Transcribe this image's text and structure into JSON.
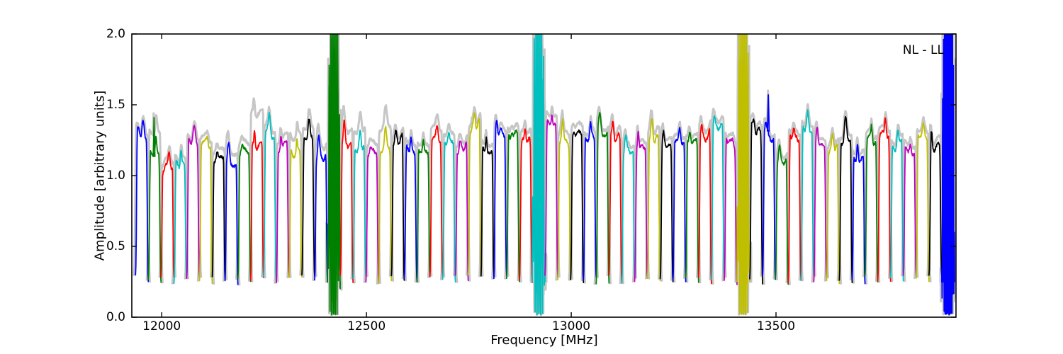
{
  "chart_data": {
    "type": "line",
    "title": "",
    "xlabel": "Frequency [MHz]",
    "ylabel": "Amplitude [arbitrary units]",
    "annotation": "NL - LL",
    "xlim": [
      11927,
      13939.5
    ],
    "ylim": [
      0.0,
      2.0
    ],
    "xticks": [
      12000,
      12500,
      13000,
      13500
    ],
    "xtick_labels": [
      "12000",
      "12500",
      "13000",
      "13500"
    ],
    "yticks": [
      0.0,
      0.5,
      1.0,
      1.5,
      2.0
    ],
    "ytick_labels": [
      "0.0",
      "0.5",
      "1.0",
      "1.5",
      "2.0"
    ],
    "grid": false,
    "legend": "none",
    "band_start_mhz": 11936,
    "band_width_mhz": 31.25,
    "n_bands": 64,
    "baseline_dip_amplitude": 0.26,
    "color_cycle": [
      "#0000ff",
      "#008000",
      "#ff0000",
      "#00bfbf",
      "#bf00bf",
      "#bfbf00",
      "#000000"
    ],
    "envelope_color": "#c6c6c6",
    "interference_band_centers_mhz": [
      12420,
      12920,
      13420,
      13920
    ],
    "bands": [
      {
        "p": 1.38,
        "g": 1.41
      },
      {
        "p": 1.27,
        "g": 1.42,
        "s": 1.41
      },
      {
        "p": 1.18,
        "g": 1.22
      },
      {
        "p": 1.2,
        "g": 1.24
      },
      {
        "p": 1.32,
        "g": 1.35
      },
      {
        "p": 1.28,
        "g": 1.32
      },
      {
        "p": 1.18,
        "g": 1.24
      },
      {
        "p": 1.22,
        "g": 1.3
      },
      {
        "p": 1.22,
        "g": 1.28
      },
      {
        "p": 1.32,
        "g": 1.55
      },
      {
        "p": 1.43,
        "g": 1.47
      },
      {
        "p": 1.3,
        "g": 1.36
      },
      {
        "p": 1.26,
        "g": 1.38
      },
      {
        "p": 1.4,
        "g": 1.47
      },
      {
        "p": 1.26,
        "g": 1.34
      },
      {
        "wild": true,
        "g": 1.5,
        "amp": 1.2,
        "freq": 7.5
      },
      {
        "p": 1.36,
        "g": 1.46
      },
      {
        "p": 1.3,
        "g": 1.43
      },
      {
        "p": 1.22,
        "g": 1.28
      },
      {
        "p": 1.32,
        "g": 1.47
      },
      {
        "p": 1.3,
        "g": 1.34
      },
      {
        "p": 1.27,
        "g": 1.32
      },
      {
        "p": 1.25,
        "g": 1.3
      },
      {
        "p": 1.35,
        "g": 1.43
      },
      {
        "p": 1.3,
        "g": 1.36
      },
      {
        "p": 1.25,
        "g": 1.3
      },
      {
        "p": 1.44,
        "g": 1.48
      },
      {
        "p": 1.28,
        "g": 1.33
      },
      {
        "p": 1.39,
        "g": 1.43
      },
      {
        "p": 1.33,
        "g": 1.38
      },
      {
        "p": 1.34,
        "g": 1.4
      },
      {
        "wild": true,
        "g": 1.5,
        "amp": 1.25,
        "freq": 7.0
      },
      {
        "p": 1.44,
        "g": 1.5
      },
      {
        "p": 1.38,
        "g": 1.44
      },
      {
        "p": 1.34,
        "g": 1.4
      },
      {
        "p": 1.36,
        "g": 1.4
      },
      {
        "p": 1.42,
        "g": 1.46
      },
      {
        "p": 1.37,
        "g": 1.42
      },
      {
        "p": 1.3,
        "g": 1.34
      },
      {
        "p": 1.33,
        "g": 1.37
      },
      {
        "p": 1.4,
        "g": 1.46
      },
      {
        "p": 1.3,
        "g": 1.35
      },
      {
        "p": 1.34,
        "g": 1.38
      },
      {
        "p": 1.32,
        "g": 1.36
      },
      {
        "p": 1.34,
        "g": 1.4
      },
      {
        "p": 1.42,
        "g": 1.47
      },
      {
        "p": 1.28,
        "g": 1.32
      },
      {
        "wild": true,
        "g": 1.6,
        "amp": 1.3,
        "freq": 7.0
      },
      {
        "p": 1.4,
        "g": 1.44
      },
      {
        "p": 1.37,
        "g": 1.4,
        "s": 1.57
      },
      {
        "p": 1.22,
        "g": 1.26
      },
      {
        "p": 1.33,
        "g": 1.37
      },
      {
        "p": 1.43,
        "g": 1.47
      },
      {
        "p": 1.36,
        "g": 1.4
      },
      {
        "p": 1.3,
        "g": 1.34
      },
      {
        "p": 1.4,
        "g": 1.44
      },
      {
        "p": 1.25,
        "g": 1.3
      },
      {
        "p": 1.35,
        "g": 1.39
      },
      {
        "p": 1.43,
        "g": 1.47
      },
      {
        "p": 1.32,
        "g": 1.36
      },
      {
        "p": 1.25,
        "g": 1.3
      },
      {
        "p": 1.35,
        "g": 1.39
      },
      {
        "p": 1.3,
        "g": 1.35
      },
      {
        "wild": true,
        "g": 1.5,
        "amp": 1.3,
        "freq": 13.0
      }
    ]
  }
}
